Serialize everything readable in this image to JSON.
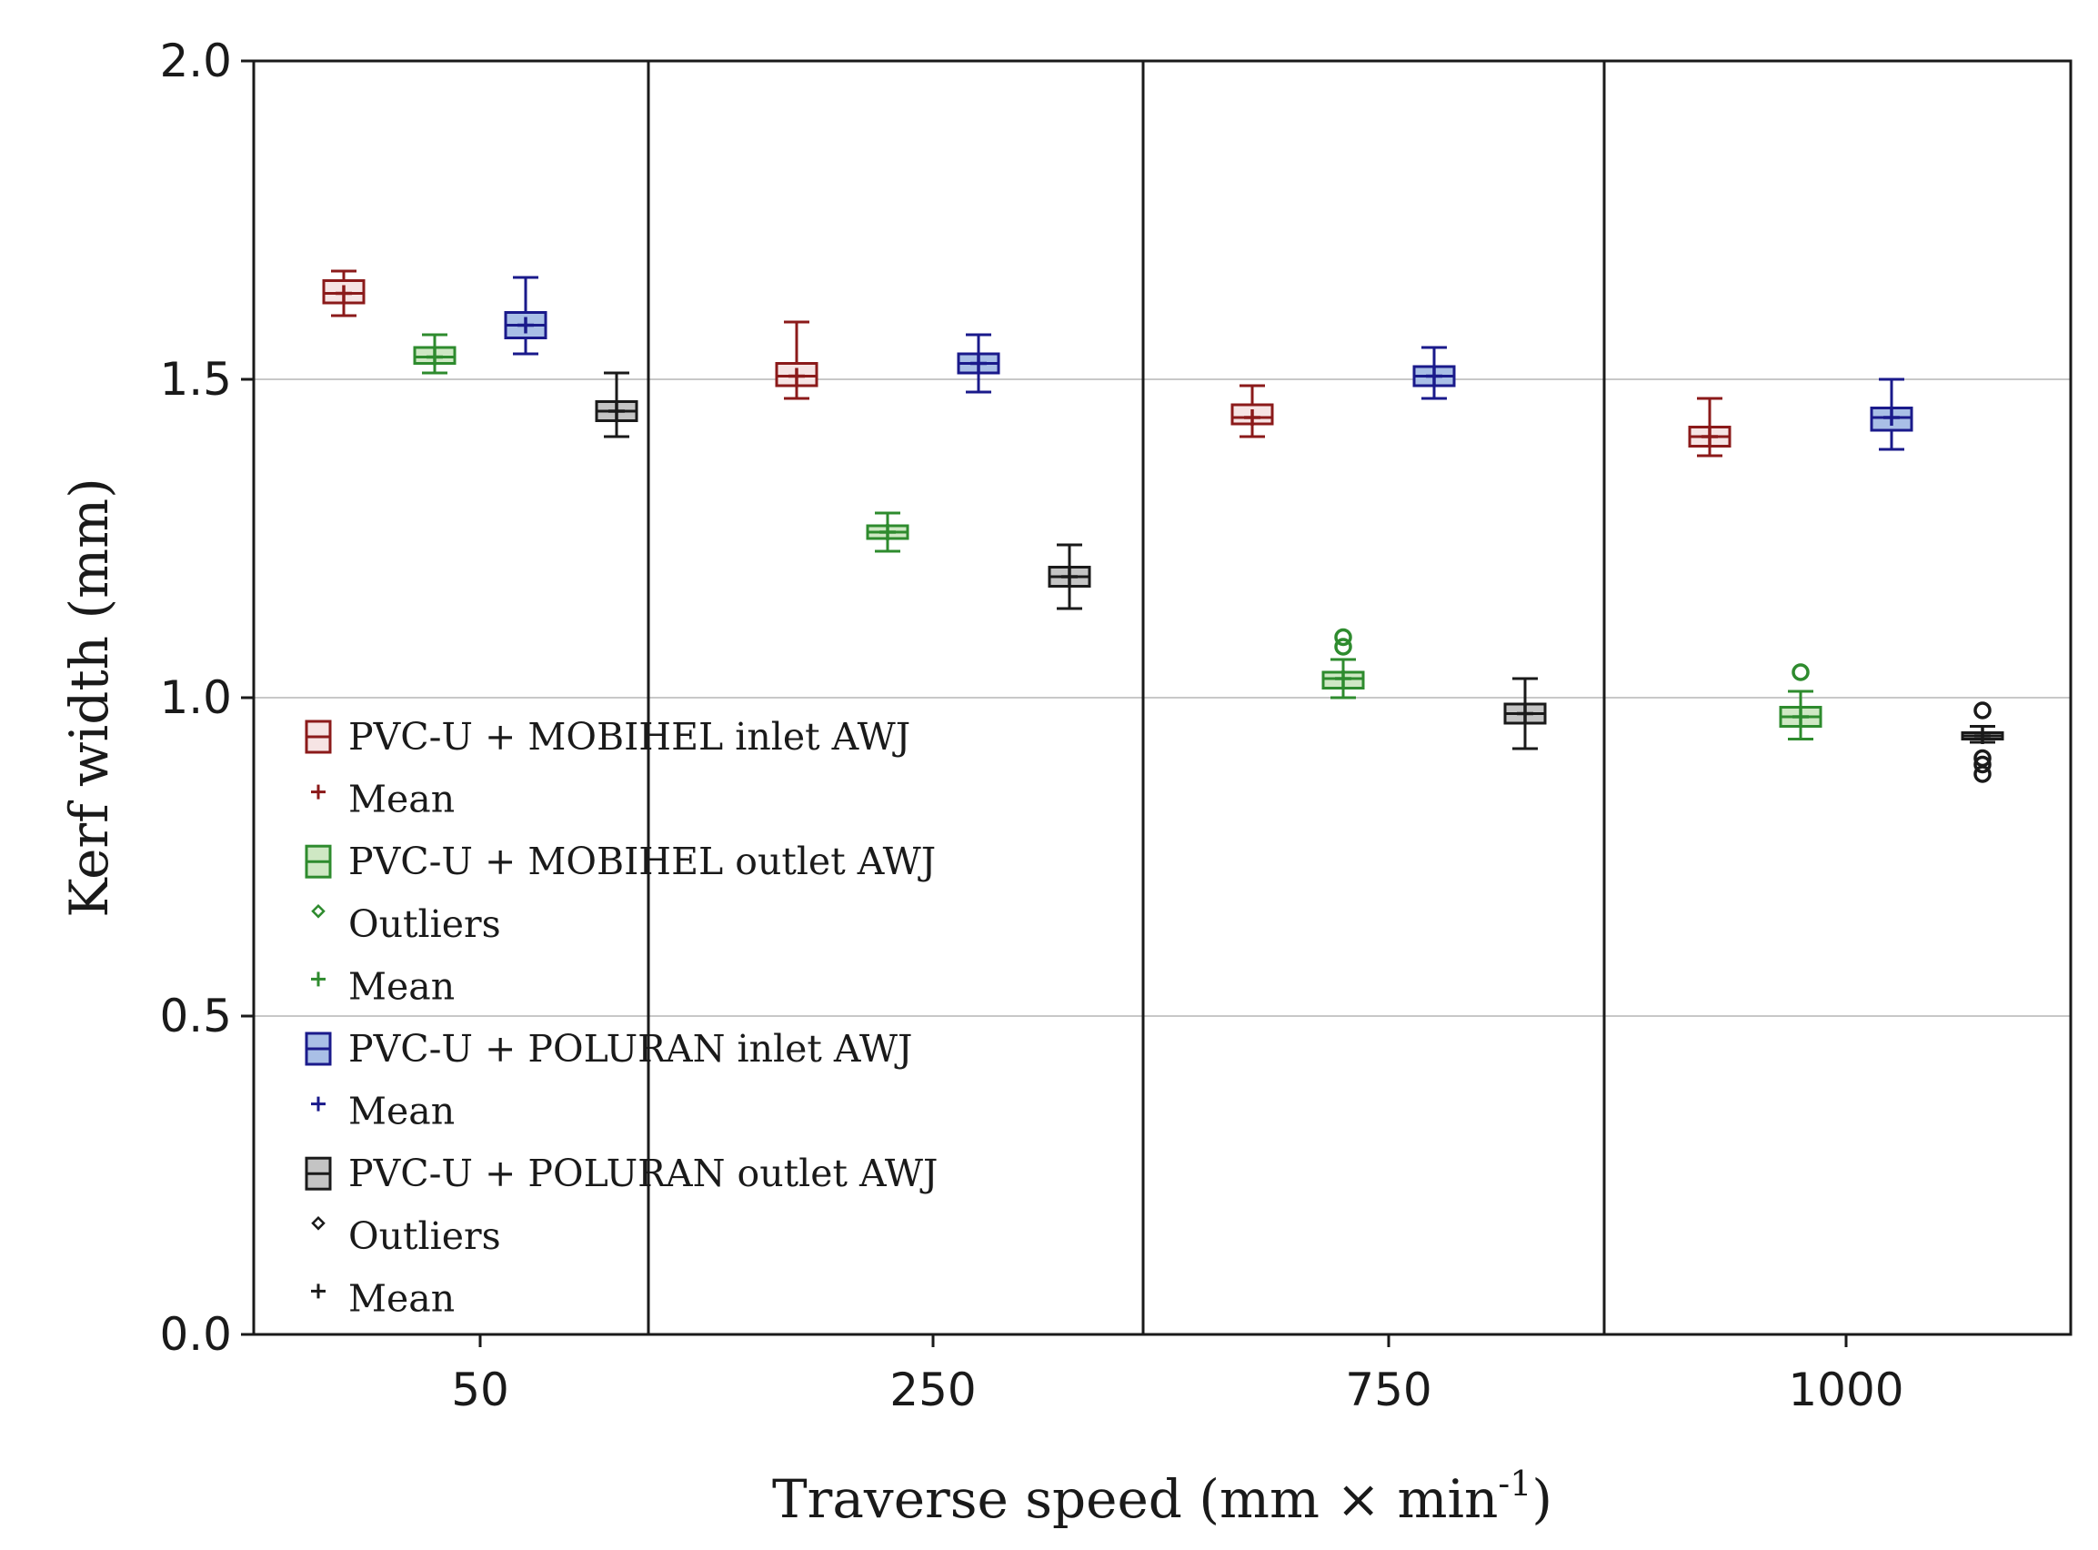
{
  "chart_data": {
    "type": "box",
    "xlabel": "Traverse speed (mm × min",
    "xlabel_sup": "-1",
    "xlabel_close": ")",
    "ylabel": "Kerf width (mm)",
    "ylim": [
      0,
      2
    ],
    "yticks": [
      "0.0",
      "0.5",
      "1.0",
      "1.5",
      "2.0"
    ],
    "grid": "horizontal",
    "categories": [
      "50",
      "250",
      "750",
      "1000"
    ],
    "legend_position": "bottom-left",
    "series": [
      {
        "name": "PVC-U + MOBIHEL inlet AWJ",
        "color": "#8b1a1a",
        "fill": "#f6e4e4",
        "boxes": [
          {
            "min": 1.6,
            "q1": 1.62,
            "median": 1.635,
            "q3": 1.655,
            "max": 1.67,
            "mean": 1.635,
            "outliers": []
          },
          {
            "min": 1.47,
            "q1": 1.49,
            "median": 1.505,
            "q3": 1.525,
            "max": 1.59,
            "mean": 1.505,
            "outliers": []
          },
          {
            "min": 1.41,
            "q1": 1.43,
            "median": 1.44,
            "q3": 1.46,
            "max": 1.49,
            "mean": 1.44,
            "outliers": []
          },
          {
            "min": 1.38,
            "q1": 1.395,
            "median": 1.41,
            "q3": 1.425,
            "max": 1.47,
            "mean": 1.41,
            "outliers": []
          }
        ]
      },
      {
        "name": "PVC-U + MOBIHEL outlet AWJ",
        "color": "#2e8b2e",
        "fill": "#cfe8c4",
        "boxes": [
          {
            "min": 1.51,
            "q1": 1.525,
            "median": 1.535,
            "q3": 1.55,
            "max": 1.57,
            "mean": 1.535,
            "outliers": []
          },
          {
            "min": 1.23,
            "q1": 1.25,
            "median": 1.26,
            "q3": 1.27,
            "max": 1.29,
            "mean": 1.26,
            "outliers": []
          },
          {
            "min": 1.0,
            "q1": 1.015,
            "median": 1.03,
            "q3": 1.04,
            "max": 1.06,
            "mean": 1.03,
            "outliers": [
              1.08,
              1.095
            ]
          },
          {
            "min": 0.935,
            "q1": 0.955,
            "median": 0.97,
            "q3": 0.985,
            "max": 1.01,
            "mean": 0.97,
            "outliers": [
              1.04
            ]
          }
        ]
      },
      {
        "name": "PVC-U + POLURAN inlet AWJ",
        "color": "#1a1a8b",
        "fill": "#a9bfe6",
        "boxes": [
          {
            "min": 1.54,
            "q1": 1.565,
            "median": 1.585,
            "q3": 1.605,
            "max": 1.66,
            "mean": 1.585,
            "outliers": []
          },
          {
            "min": 1.48,
            "q1": 1.51,
            "median": 1.525,
            "q3": 1.54,
            "max": 1.57,
            "mean": 1.525,
            "outliers": []
          },
          {
            "min": 1.47,
            "q1": 1.49,
            "median": 1.505,
            "q3": 1.52,
            "max": 1.55,
            "mean": 1.505,
            "outliers": []
          },
          {
            "min": 1.39,
            "q1": 1.42,
            "median": 1.44,
            "q3": 1.455,
            "max": 1.5,
            "mean": 1.44,
            "outliers": []
          }
        ]
      },
      {
        "name": "PVC-U + POLURAN outlet AWJ",
        "color": "#1a1a1a",
        "fill": "#c4c4c4",
        "boxes": [
          {
            "min": 1.41,
            "q1": 1.435,
            "median": 1.45,
            "q3": 1.465,
            "max": 1.51,
            "mean": 1.45,
            "outliers": []
          },
          {
            "min": 1.14,
            "q1": 1.175,
            "median": 1.19,
            "q3": 1.205,
            "max": 1.24,
            "mean": 1.19,
            "outliers": []
          },
          {
            "min": 0.92,
            "q1": 0.96,
            "median": 0.975,
            "q3": 0.99,
            "max": 1.03,
            "mean": 0.975,
            "outliers": []
          },
          {
            "min": 0.93,
            "q1": 0.935,
            "median": 0.94,
            "q3": 0.945,
            "max": 0.955,
            "mean": 0.94,
            "outliers": [
              0.98,
              0.905,
              0.895,
              0.88
            ]
          }
        ]
      }
    ],
    "legend": [
      {
        "label": "PVC-U + MOBIHEL inlet AWJ",
        "symbol": "box",
        "color": "#8b1a1a",
        "fill": "#f6e4e4"
      },
      {
        "label": "Mean",
        "symbol": "plus",
        "color": "#8b1a1a"
      },
      {
        "label": "PVC-U + MOBIHEL outlet AWJ",
        "symbol": "box",
        "color": "#2e8b2e",
        "fill": "#cfe8c4"
      },
      {
        "label": "Outliers",
        "symbol": "diamond",
        "color": "#2e8b2e"
      },
      {
        "label": "Mean",
        "symbol": "plus",
        "color": "#2e8b2e"
      },
      {
        "label": "PVC-U + POLURAN inlet AWJ",
        "symbol": "box",
        "color": "#1a1a8b",
        "fill": "#a9bfe6"
      },
      {
        "label": "Mean",
        "symbol": "plus",
        "color": "#1a1a8b"
      },
      {
        "label": "PVC-U + POLURAN outlet AWJ",
        "symbol": "box",
        "color": "#1a1a1a",
        "fill": "#c4c4c4"
      },
      {
        "label": "Outliers",
        "symbol": "diamond",
        "color": "#1a1a1a"
      },
      {
        "label": "Mean",
        "symbol": "plus",
        "color": "#1a1a1a"
      }
    ]
  }
}
